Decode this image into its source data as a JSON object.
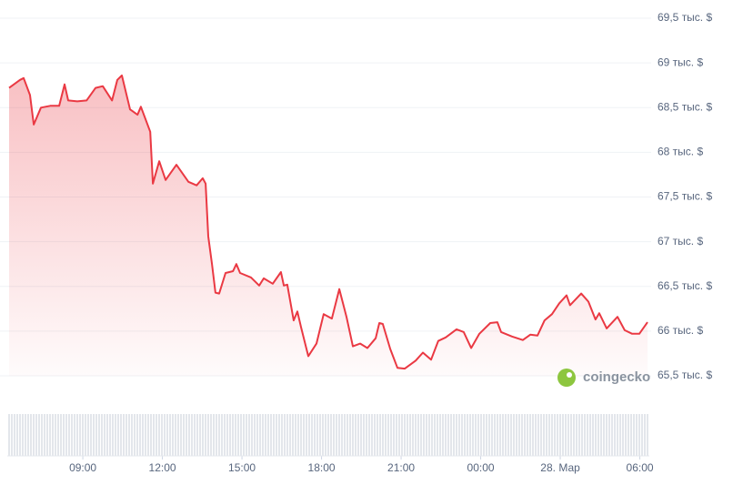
{
  "chart_data": {
    "type": "line",
    "watermark": "coingecko",
    "xlim": [
      6.22,
      30.29
    ],
    "ylim": [
      65500,
      69500
    ],
    "grid": true,
    "xticks": [
      {
        "value": 9,
        "label": "09:00"
      },
      {
        "value": 12,
        "label": "12:00"
      },
      {
        "value": 15,
        "label": "15:00"
      },
      {
        "value": 18,
        "label": "18:00"
      },
      {
        "value": 21,
        "label": "21:00"
      },
      {
        "value": 24,
        "label": "00:00"
      },
      {
        "value": 27,
        "label": "28. Мар"
      },
      {
        "value": 30,
        "label": "06:00"
      }
    ],
    "yticks": [
      {
        "value": 65500,
        "label": "65,5 тыс. $"
      },
      {
        "value": 66000,
        "label": "66 тыс. $"
      },
      {
        "value": 66500,
        "label": "66,5 тыс. $"
      },
      {
        "value": 67000,
        "label": "67 тыс. $"
      },
      {
        "value": 67500,
        "label": "67,5 тыс. $"
      },
      {
        "value": 68000,
        "label": "68 тыс. $"
      },
      {
        "value": 68500,
        "label": "68,5 тыс. $"
      },
      {
        "value": 69000,
        "label": "69 тыс. $"
      },
      {
        "value": 69500,
        "label": "69,5 тыс. $"
      }
    ],
    "color": "#ea3943",
    "x": [
      6.22,
      6.63,
      6.77,
      7.01,
      7.15,
      7.42,
      7.77,
      8.11,
      8.31,
      8.45,
      8.79,
      9.14,
      9.48,
      9.75,
      10.1,
      10.3,
      10.47,
      10.78,
      11.06,
      11.19,
      11.54,
      11.64,
      11.88,
      12.12,
      12.53,
      12.98,
      13.29,
      13.52,
      13.63,
      13.73,
      13.87,
      14.0,
      14.14,
      14.38,
      14.66,
      14.79,
      14.93,
      15.34,
      15.65,
      15.82,
      16.16,
      16.47,
      16.58,
      16.71,
      16.95,
      17.09,
      17.23,
      17.5,
      17.81,
      18.08,
      18.39,
      18.67,
      18.94,
      19.18,
      19.46,
      19.73,
      20.04,
      20.18,
      20.31,
      20.59,
      20.86,
      21.14,
      21.55,
      21.82,
      22.13,
      22.4,
      22.68,
      23.09,
      23.36,
      23.64,
      23.95,
      24.36,
      24.63,
      24.77,
      25.18,
      25.59,
      25.87,
      26.14,
      26.41,
      26.69,
      26.96,
      27.24,
      27.37,
      27.79,
      28.06,
      28.33,
      28.47,
      28.75,
      29.16,
      29.43,
      29.71,
      29.98,
      30.29
    ],
    "values": [
      68720,
      68810,
      68830,
      68640,
      68310,
      68500,
      68520,
      68520,
      68760,
      68580,
      68570,
      68580,
      68720,
      68740,
      68580,
      68810,
      68860,
      68480,
      68420,
      68510,
      68230,
      67650,
      67900,
      67690,
      67860,
      67670,
      67630,
      67710,
      67650,
      67060,
      66750,
      66430,
      66420,
      66650,
      66670,
      66750,
      66650,
      66600,
      66510,
      66590,
      66530,
      66660,
      66510,
      66520,
      66120,
      66220,
      66040,
      65720,
      65860,
      66190,
      66140,
      66470,
      66160,
      65830,
      65860,
      65810,
      65920,
      66090,
      66080,
      65800,
      65590,
      65580,
      65670,
      65760,
      65680,
      65890,
      65930,
      66020,
      65990,
      65810,
      65970,
      66090,
      66100,
      65990,
      65940,
      65900,
      65960,
      65950,
      66120,
      66190,
      66310,
      66400,
      66290,
      66420,
      66330,
      66130,
      66200,
      66030,
      66160,
      66010,
      65970,
      65970,
      66100
    ]
  }
}
